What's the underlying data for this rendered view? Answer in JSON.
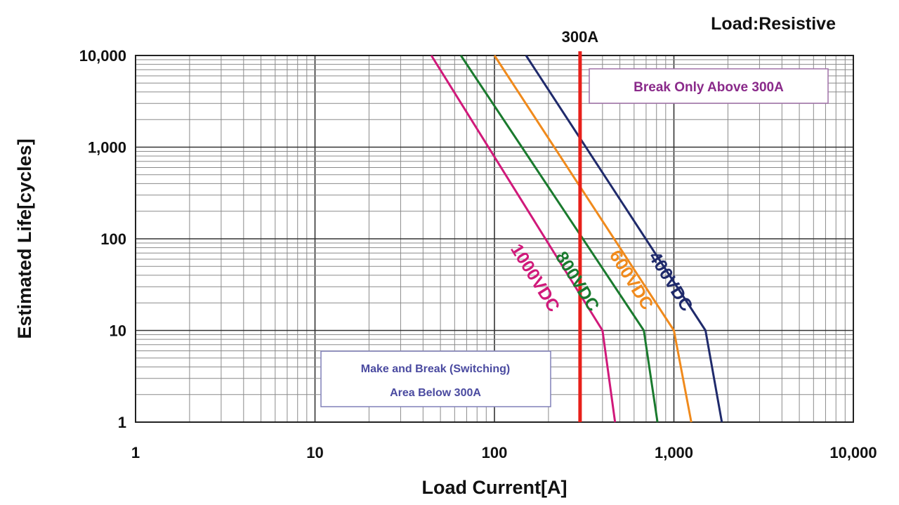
{
  "chart_data": {
    "type": "line",
    "title": "Load:Resistive",
    "xlabel": "Load Current[A]",
    "ylabel": "Estimated Life[cycles]",
    "xscale": "log",
    "yscale": "log",
    "xlim": [
      1,
      10000
    ],
    "ylim": [
      1,
      10000
    ],
    "grid": true,
    "x_ticks": [
      {
        "value": 1,
        "label": "1"
      },
      {
        "value": 10,
        "label": "10"
      },
      {
        "value": 100,
        "label": "100"
      },
      {
        "value": 1000,
        "label": "1,000"
      },
      {
        "value": 10000,
        "label": "10,000"
      }
    ],
    "y_ticks": [
      {
        "value": 1,
        "label": "1"
      },
      {
        "value": 10,
        "label": "10"
      },
      {
        "value": 100,
        "label": "100"
      },
      {
        "value": 1000,
        "label": "1,000"
      },
      {
        "value": 10000,
        "label": "10,000"
      }
    ],
    "series": [
      {
        "name": "1000VDC",
        "color": "#d0197a",
        "points": [
          [
            44.5,
            10000
          ],
          [
            400,
            10
          ],
          [
            470,
            1
          ]
        ]
      },
      {
        "name": "800VDC",
        "color": "#1a7a2e",
        "points": [
          [
            65,
            10000
          ],
          [
            680,
            10
          ],
          [
            810,
            1
          ]
        ]
      },
      {
        "name": "600VDC",
        "color": "#f08a1c",
        "points": [
          [
            100,
            10000
          ],
          [
            1000,
            10
          ],
          [
            1250,
            1
          ]
        ]
      },
      {
        "name": "400VDC",
        "color": "#1f2a6b",
        "points": [
          [
            150,
            10000
          ],
          [
            1500,
            10
          ],
          [
            1850,
            1
          ]
        ]
      }
    ],
    "reference_line": {
      "value": 300,
      "label": "300A",
      "color": "#e8201a"
    },
    "annotations": [
      {
        "text": "Break Only Above 300A",
        "color": "#8a2a8a"
      },
      {
        "lines": [
          "Make and Break (Switching)",
          "Area Below  300A"
        ],
        "color": "#4a4aa0"
      }
    ]
  }
}
